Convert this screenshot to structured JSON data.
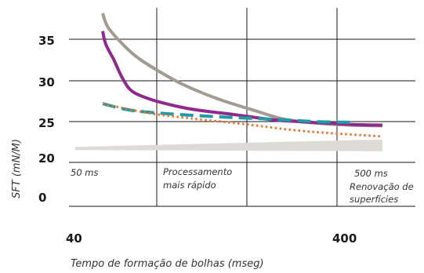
{
  "chart_data": {
    "type": "line",
    "xlabel": "Tempo de formação de bolhas (mseg)",
    "ylabel": "SFT (mN/M)",
    "x_ticks": [
      "40",
      "400"
    ],
    "y_ticks": [
      "35",
      "30",
      "25",
      "20",
      "0"
    ],
    "grid": true,
    "annotations": [
      {
        "id": "a1",
        "lines": [
          "50 ms"
        ]
      },
      {
        "id": "a2",
        "lines": [
          "Processamento",
          "mais rápido"
        ]
      },
      {
        "id": "a3",
        "lines": [
          "500 ms",
          "Renovação de",
          "superfícies"
        ]
      }
    ],
    "series": [
      {
        "style": "solid",
        "color": "#a39a91",
        "points": [
          [
            42,
            38.2
          ],
          [
            52,
            36.5
          ],
          [
            65,
            34.6
          ],
          [
            80,
            32.9
          ],
          [
            100,
            31.3
          ],
          [
            130,
            29.5
          ],
          [
            170,
            27.7
          ],
          [
            220,
            26.3
          ],
          [
            280,
            25.3
          ],
          [
            350,
            24.8
          ],
          [
            420,
            24.5
          ],
          [
            470,
            24.4
          ]
        ]
      },
      {
        "style": "solid",
        "color": "#8e2a8c",
        "points": [
          [
            42,
            36.0
          ],
          [
            50,
            34.4
          ],
          [
            58,
            32.5
          ],
          [
            66,
            30.4
          ],
          [
            75,
            28.8
          ],
          [
            90,
            27.9
          ],
          [
            110,
            27.2
          ],
          [
            140,
            26.5
          ],
          [
            190,
            25.8
          ],
          [
            260,
            25.2
          ],
          [
            340,
            24.9
          ],
          [
            420,
            24.6
          ],
          [
            470,
            24.5
          ]
        ]
      },
      {
        "style": "dashed",
        "color": "#1f9aa6",
        "points": [
          [
            42,
            27.2
          ],
          [
            80,
            26.3
          ],
          [
            150,
            25.7
          ],
          [
            250,
            25.3
          ],
          [
            350,
            25.0
          ],
          [
            420,
            24.9
          ]
        ]
      },
      {
        "style": "dotted",
        "color": "#e6772e",
        "points": [
          [
            42,
            27.2
          ],
          [
            100,
            25.9
          ],
          [
            200,
            24.6
          ],
          [
            300,
            23.8
          ],
          [
            400,
            23.3
          ],
          [
            470,
            22.9
          ]
        ]
      },
      {
        "style": "band",
        "color": "#dedbd6",
        "points": [
          [
            20,
            21.3
          ],
          [
            470,
            21.7
          ]
        ]
      }
    ]
  }
}
